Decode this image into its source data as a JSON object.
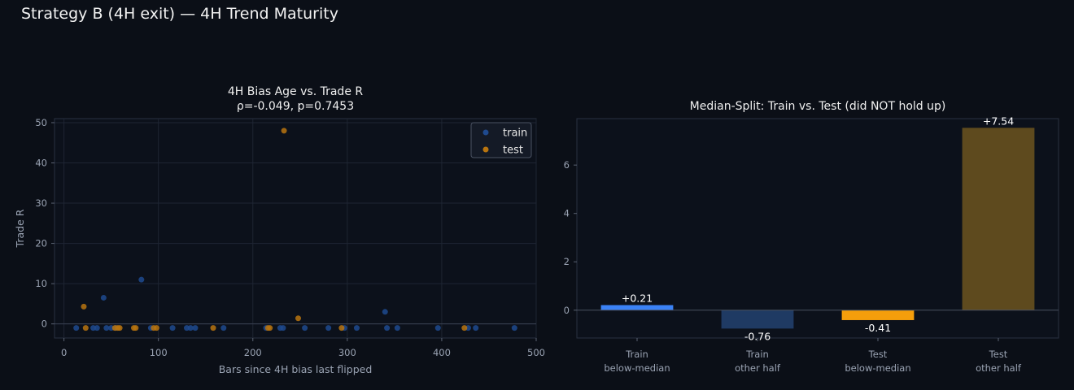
{
  "suptitle": "Strategy B (4H exit) — 4H Trend Maturity",
  "chart_data": [
    {
      "type": "scatter",
      "title_line1": "4H Bias Age vs. Trade R",
      "title_line2": "ρ=-0.049, p=0.7453",
      "xlabel": "Bars since 4H bias last flipped",
      "ylabel": "Trade R",
      "xlim": [
        -10,
        500
      ],
      "ylim": [
        -3.5,
        51
      ],
      "xticks": [
        0,
        100,
        200,
        300,
        400,
        500
      ],
      "yticks": [
        0,
        10,
        20,
        30,
        40,
        50
      ],
      "grid": true,
      "legend": "top-right",
      "series": [
        {
          "name": "train",
          "color": "#1f4a8e",
          "points": [
            [
              13,
              -1
            ],
            [
              31,
              -1
            ],
            [
              35,
              -1
            ],
            [
              42,
              6.5
            ],
            [
              45,
              -1
            ],
            [
              50,
              -1
            ],
            [
              55,
              -1
            ],
            [
              82,
              11
            ],
            [
              92,
              -1
            ],
            [
              115,
              -1
            ],
            [
              130,
              -1
            ],
            [
              134,
              -1
            ],
            [
              139,
              -1
            ],
            [
              169,
              -1
            ],
            [
              214,
              -1
            ],
            [
              229,
              -1
            ],
            [
              232,
              -1
            ],
            [
              255,
              -1
            ],
            [
              280,
              -1
            ],
            [
              297,
              -1
            ],
            [
              310,
              -1
            ],
            [
              340,
              3
            ],
            [
              342,
              -1
            ],
            [
              353,
              -1
            ],
            [
              396,
              -1
            ],
            [
              428,
              -1
            ],
            [
              436,
              -1
            ],
            [
              477,
              -1
            ]
          ]
        },
        {
          "name": "test",
          "color": "#b8740f",
          "points": [
            [
              21,
              4.3
            ],
            [
              23,
              -1
            ],
            [
              54,
              -1
            ],
            [
              57,
              -1
            ],
            [
              59,
              -1
            ],
            [
              74,
              -1
            ],
            [
              76,
              -1
            ],
            [
              95,
              -1
            ],
            [
              98,
              -1
            ],
            [
              158,
              -1
            ],
            [
              216,
              -1
            ],
            [
              218,
              -1
            ],
            [
              233,
              48
            ],
            [
              248,
              1.4
            ],
            [
              294,
              -1
            ],
            [
              424,
              -1
            ]
          ]
        }
      ]
    },
    {
      "type": "bar",
      "title": "Median-Split: Train vs. Test (did NOT hold up)",
      "categories": [
        {
          "line1": "Train",
          "line2": "below-median"
        },
        {
          "line1": "Train",
          "line2": "other half"
        },
        {
          "line1": "Test",
          "line2": "below-median"
        },
        {
          "line1": "Test",
          "line2": "other half"
        }
      ],
      "values": [
        0.21,
        -0.76,
        -0.41,
        7.54
      ],
      "value_labels": [
        "+0.21",
        "-0.76",
        "-0.41",
        "+7.54"
      ],
      "colors": [
        "#3b82f6",
        "#1f3a63",
        "#f59e0b",
        "#5e4a1e"
      ],
      "ylim": [
        -1.15,
        7.92
      ],
      "yticks": [
        0,
        2,
        4,
        6
      ],
      "grid": false
    }
  ]
}
